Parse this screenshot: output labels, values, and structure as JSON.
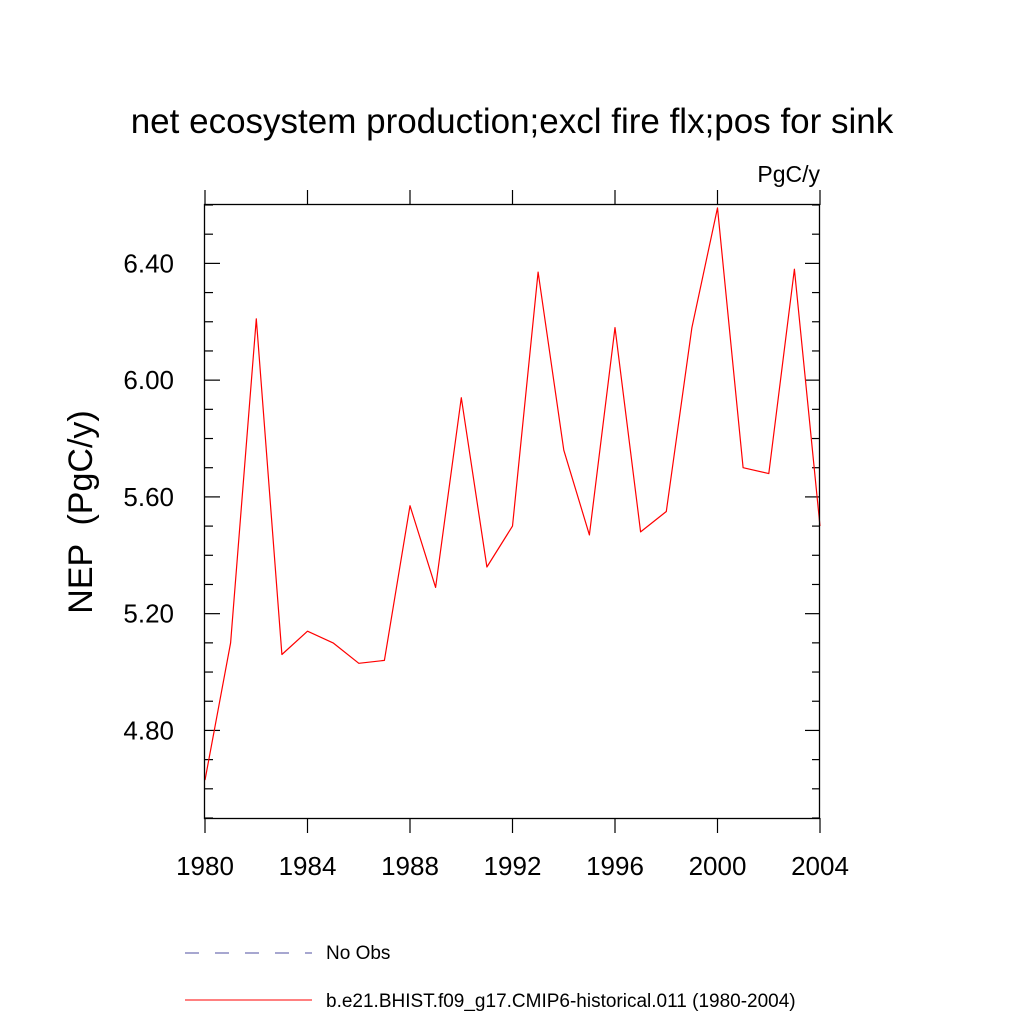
{
  "chart_data": {
    "type": "line",
    "title": "net ecosystem production;excl fire flx;pos for sink",
    "units_label": "PgC/y",
    "ylabel": "NEP  (PgC/y)",
    "xlabel": "",
    "xlim": [
      1980,
      2004
    ],
    "ylim": [
      4.5,
      6.6
    ],
    "x_ticks": [
      1980,
      1984,
      1988,
      1992,
      1996,
      2000,
      2004
    ],
    "x_tick_labels": [
      "1980",
      "1984",
      "1988",
      "1992",
      "1996",
      "2000",
      "2004"
    ],
    "y_ticks": [
      4.8,
      5.2,
      5.6,
      6.0,
      6.4
    ],
    "y_tick_labels": [
      "4.80",
      "5.20",
      "5.60",
      "6.00",
      "6.40"
    ],
    "grid": false,
    "legend_position": "bottom",
    "series": [
      {
        "name": "b.e21.BHIST.f09_g17.CMIP6-historical.011 (1980-2004)",
        "color": "#ff0000",
        "style": "solid",
        "x": [
          1980,
          1981,
          1982,
          1983,
          1984,
          1985,
          1986,
          1987,
          1988,
          1989,
          1990,
          1991,
          1992,
          1993,
          1994,
          1995,
          1996,
          1997,
          1998,
          1999,
          2000,
          2001,
          2002,
          2003,
          2004
        ],
        "y": [
          4.63,
          5.1,
          6.21,
          5.06,
          5.14,
          5.1,
          5.03,
          5.04,
          5.57,
          5.29,
          5.94,
          5.36,
          5.5,
          6.37,
          5.76,
          5.47,
          6.18,
          5.48,
          5.55,
          6.18,
          6.59,
          5.7,
          5.68,
          6.38,
          5.5
        ]
      }
    ],
    "legend": [
      {
        "label": "No Obs",
        "color": "#4f4fa0",
        "style": "dashed"
      },
      {
        "label": "b.e21.BHIST.f09_g17.CMIP6-historical.011 (1980-2004)",
        "color": "#ff0000",
        "style": "solid"
      }
    ]
  }
}
